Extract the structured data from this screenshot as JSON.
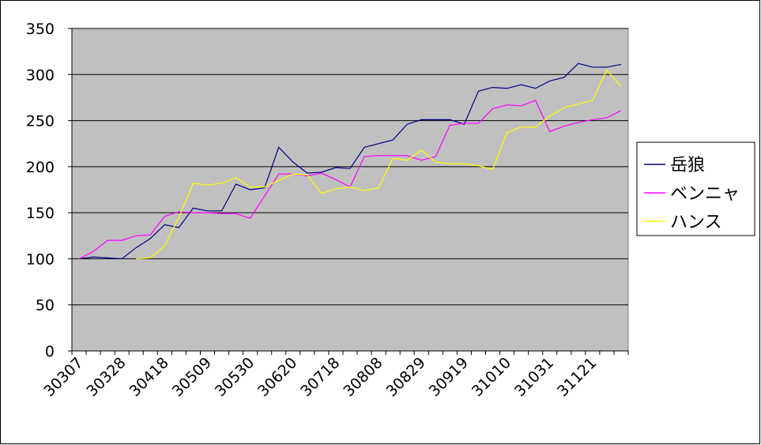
{
  "chart_data": {
    "type": "line",
    "categories": [
      "30307",
      null,
      null,
      "30328",
      null,
      null,
      "30418",
      null,
      null,
      "30509",
      null,
      null,
      "30530",
      null,
      null,
      "30620",
      null,
      null,
      "30718",
      null,
      null,
      "30808",
      null,
      null,
      "30829",
      null,
      null,
      "30919",
      null,
      null,
      "31010",
      null,
      null,
      "31031",
      null,
      null,
      "31121",
      null,
      null
    ],
    "series": [
      {
        "name": "岳狼",
        "color": "#000080",
        "values": [
          100,
          102,
          101,
          100,
          112,
          122,
          137,
          134,
          155,
          152,
          152,
          181,
          175,
          177,
          221,
          205,
          193,
          194,
          199,
          198,
          221,
          225,
          229,
          246,
          251,
          251,
          251,
          246,
          282,
          286,
          285,
          289,
          285,
          293,
          297,
          312,
          308,
          308,
          311
        ]
      },
      {
        "name": "ベンニャ",
        "color": "#ff00ff",
        "values": [
          100,
          108,
          120,
          120,
          125,
          126,
          146,
          151,
          150,
          150,
          149,
          149,
          144,
          168,
          192,
          192,
          190,
          193,
          186,
          178,
          211,
          212,
          212,
          212,
          207,
          211,
          245,
          247,
          247,
          263,
          267,
          266,
          272,
          238,
          244,
          248,
          251,
          253,
          261
        ]
      },
      {
        "name": "ハンス",
        "color": "#ffff00",
        "values": [
          null,
          null,
          null,
          null,
          100,
          101,
          114,
          145,
          182,
          180,
          182,
          188,
          178,
          178,
          185,
          192,
          191,
          171,
          176,
          178,
          174,
          177,
          209,
          207,
          218,
          205,
          203,
          203,
          201,
          197,
          237,
          243,
          243,
          255,
          264,
          268,
          272,
          305,
          287
        ]
      }
    ],
    "ylim": [
      0,
      350
    ],
    "yticks": [
      0,
      50,
      100,
      150,
      200,
      250,
      300,
      350
    ],
    "grid": true,
    "legend": "right"
  }
}
